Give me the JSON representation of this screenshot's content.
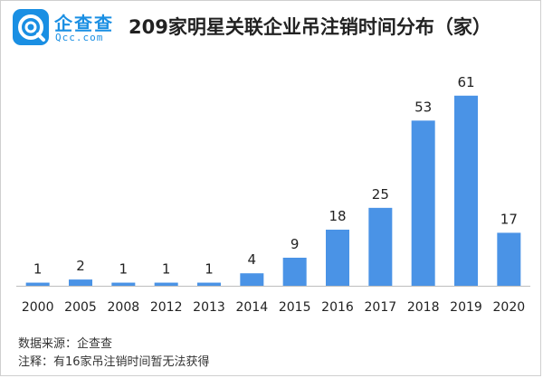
{
  "brand": {
    "name_cn": "企查查",
    "name_en": "Qcc.com",
    "color": "#1a8fe3"
  },
  "title": "209家明星关联企业吊注销时间分布（家）",
  "footer": {
    "source": "数据来源：企查查",
    "note": "注释：有16家吊注销时间暂无法获得"
  },
  "chart_data": {
    "type": "bar",
    "categories": [
      "2000",
      "2005",
      "2008",
      "2012",
      "2013",
      "2014",
      "2015",
      "2016",
      "2017",
      "2018",
      "2019",
      "2020"
    ],
    "values": [
      1,
      2,
      1,
      1,
      1,
      4,
      9,
      18,
      25,
      53,
      61,
      17
    ],
    "ylim": [
      0,
      65
    ],
    "bar_color": "#4a93e6",
    "data_labels": true,
    "grid": false
  }
}
